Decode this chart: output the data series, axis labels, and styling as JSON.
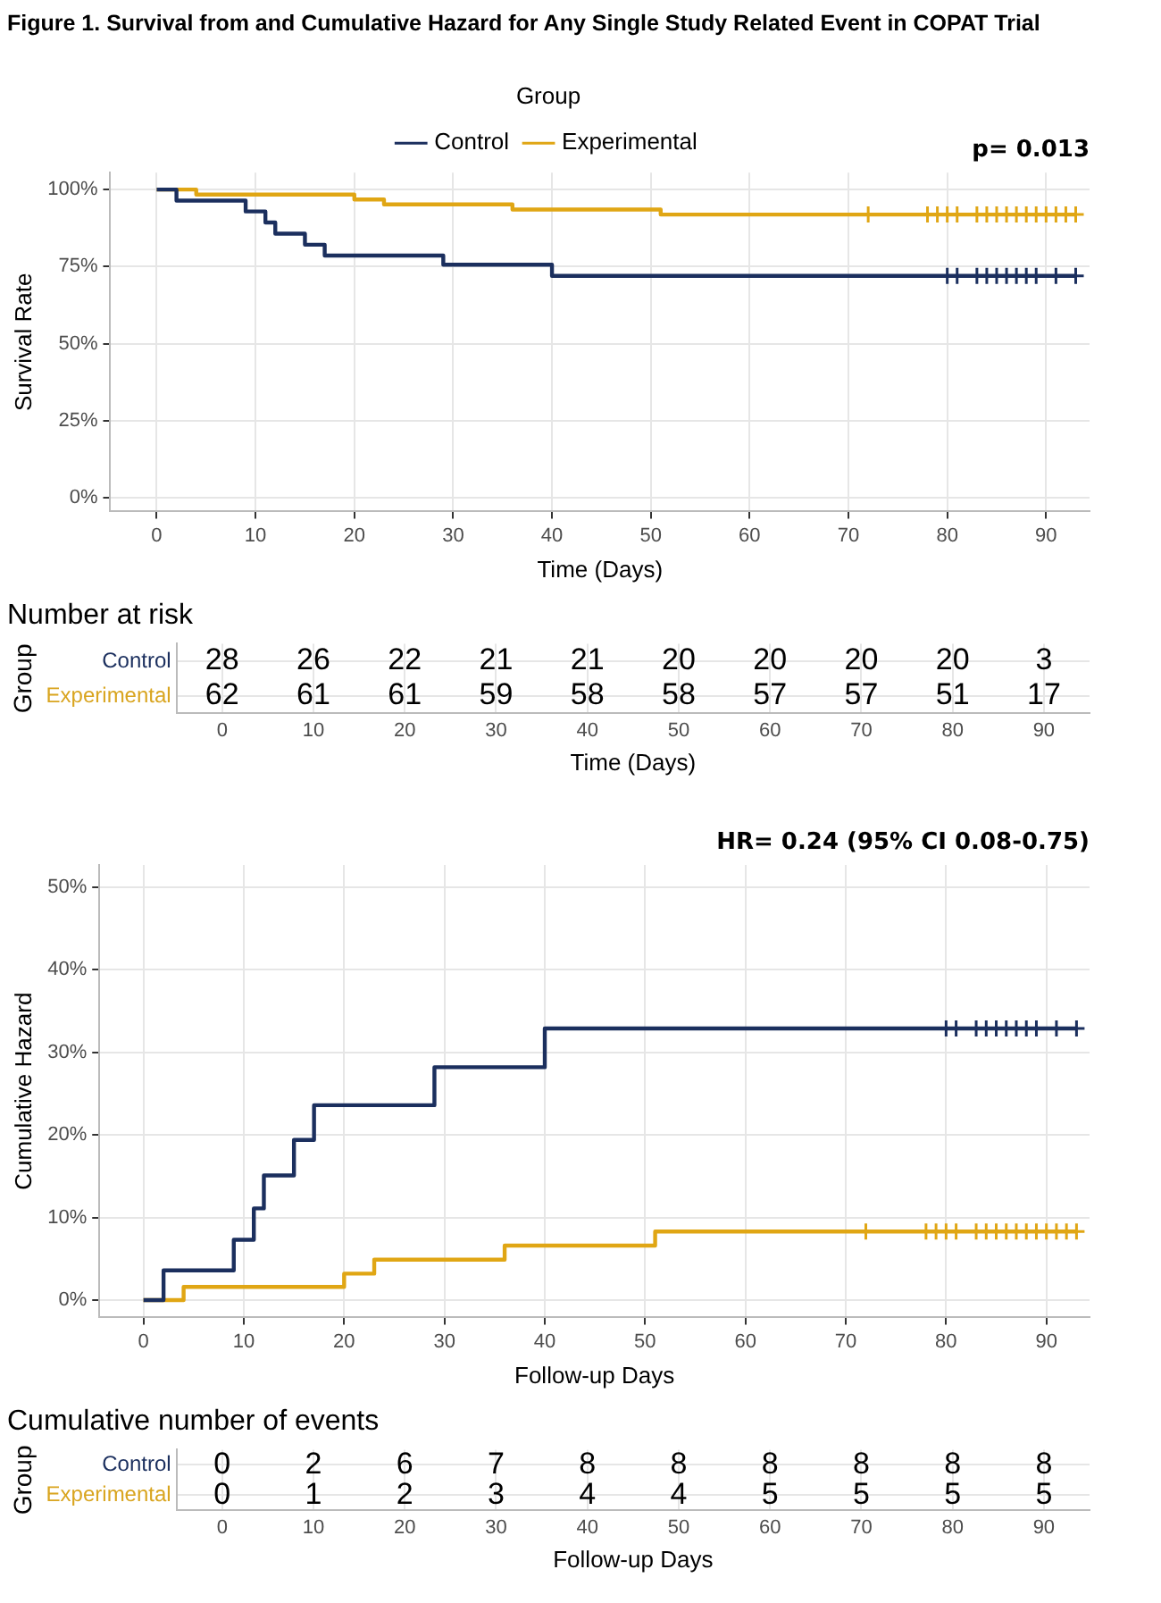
{
  "chart_data": [
    {
      "type": "step",
      "title": "Figure 1. Survival from and Cumulative Hazard for Any Single Study Related Event in COPAT Trial",
      "legend_title": "Group",
      "legend": "top",
      "xlabel": "Time (Days)",
      "ylabel": "Survival Rate",
      "annotations": [
        "p= 0.013"
      ],
      "grid": true,
      "xlim": [
        -4.7,
        94.4
      ],
      "xticks": [
        0,
        10,
        20,
        30,
        40,
        50,
        60,
        70,
        80,
        90
      ],
      "ylim": [
        -4.5,
        105.5
      ],
      "yticks": [
        {
          "value": 0,
          "label": "0%"
        },
        {
          "value": 25,
          "label": "25%"
        },
        {
          "value": 50,
          "label": "50%"
        },
        {
          "value": 75,
          "label": "75%"
        },
        {
          "value": 100,
          "label": "100%"
        }
      ],
      "series": [
        {
          "name": "Control",
          "color": "#1b2f5e",
          "x": [
            0,
            2,
            9,
            11,
            12,
            15,
            17,
            29,
            40,
            93
          ],
          "values": [
            100,
            96.4,
            92.9,
            89.3,
            85.7,
            82.1,
            78.6,
            75.6,
            72.0,
            72.0
          ]
        },
        {
          "name": "Experimental",
          "color": "#e0a614",
          "x": [
            0,
            4,
            20,
            23,
            36,
            51,
            93
          ],
          "values": [
            100,
            98.4,
            96.8,
            95.2,
            93.5,
            91.9,
            91.9
          ]
        },
        {
          "type": "scatter",
          "marker": "cross",
          "color": "#1b2f5e",
          "x": [
            80,
            81,
            83,
            84,
            85,
            86,
            87,
            88,
            89,
            91,
            93
          ],
          "values": [
            72.0,
            72.0,
            72.0,
            72.0,
            72.0,
            72.0,
            72.0,
            72.0,
            72.0,
            72.0,
            72.0
          ]
        },
        {
          "type": "scatter",
          "marker": "cross",
          "color": "#e0a614",
          "x": [
            72,
            78,
            79,
            80,
            81,
            83,
            84,
            85,
            86,
            87,
            88,
            89,
            90,
            91,
            92,
            93
          ],
          "values": [
            91.9,
            91.9,
            91.9,
            91.9,
            91.9,
            91.9,
            91.9,
            91.9,
            91.9,
            91.9,
            91.9,
            91.9,
            91.9,
            91.9,
            91.9,
            91.9
          ]
        }
      ]
    },
    {
      "type": "heatmap",
      "title": "Number at risk",
      "xlabel": "Time (Days)",
      "ylabel": "Group",
      "grid": true,
      "data_labels": true,
      "categories": [
        "0",
        "10",
        "20",
        "30",
        "40",
        "50",
        "60",
        "70",
        "80",
        "90"
      ],
      "y_categories": [
        "Control",
        "Experimental"
      ],
      "cells": [
        [
          28,
          26,
          22,
          21,
          21,
          20,
          20,
          20,
          20,
          3
        ],
        [
          62,
          61,
          61,
          59,
          58,
          58,
          57,
          57,
          51,
          17
        ]
      ]
    },
    {
      "type": "step",
      "xlabel": "Follow-up Days",
      "ylabel": "Cumulative Hazard",
      "annotations": [
        "HR= 0.24 (95% CI 0.08-0.75)"
      ],
      "grid": true,
      "xlim": [
        -4.4,
        94.3
      ],
      "xticks": [
        0,
        10,
        20,
        30,
        40,
        50,
        60,
        70,
        80,
        90
      ],
      "ylim": [
        -2.1,
        52.7
      ],
      "yticks": [
        {
          "value": 0,
          "label": "0%"
        },
        {
          "value": 10,
          "label": "10%"
        },
        {
          "value": 20,
          "label": "20%"
        },
        {
          "value": 30,
          "label": "30%"
        },
        {
          "value": 40,
          "label": "40%"
        },
        {
          "value": 50,
          "label": "50%"
        }
      ],
      "series": [
        {
          "color": "#1b2f5e",
          "x": [
            0,
            2,
            9,
            11,
            12,
            15,
            17,
            29,
            40,
            93
          ],
          "values": [
            0,
            3.6,
            7.3,
            11.1,
            15.1,
            19.4,
            23.6,
            28.2,
            32.9,
            32.9
          ]
        },
        {
          "color": "#e0a614",
          "x": [
            0,
            4,
            20,
            23,
            36,
            51,
            93
          ],
          "values": [
            0,
            1.6,
            3.2,
            4.9,
            6.6,
            8.3,
            8.3
          ]
        },
        {
          "type": "scatter",
          "marker": "cross",
          "color": "#1b2f5e",
          "x": [
            80,
            81,
            83,
            84,
            85,
            86,
            87,
            88,
            89,
            91,
            93
          ],
          "values": [
            32.9,
            32.9,
            32.9,
            32.9,
            32.9,
            32.9,
            32.9,
            32.9,
            32.9,
            32.9,
            32.9
          ]
        },
        {
          "type": "scatter",
          "marker": "cross",
          "color": "#e0a614",
          "x": [
            72,
            78,
            79,
            80,
            81,
            83,
            84,
            85,
            86,
            87,
            88,
            89,
            90,
            91,
            92,
            93
          ],
          "values": [
            8.3,
            8.3,
            8.3,
            8.3,
            8.3,
            8.3,
            8.3,
            8.3,
            8.3,
            8.3,
            8.3,
            8.3,
            8.3,
            8.3,
            8.3,
            8.3
          ]
        }
      ]
    },
    {
      "type": "heatmap",
      "title": "Cumulative number of events",
      "xlabel": "Follow-up Days",
      "ylabel": "Group",
      "grid": true,
      "data_labels": true,
      "categories": [
        "0",
        "10",
        "20",
        "30",
        "40",
        "50",
        "60",
        "70",
        "80",
        "90"
      ],
      "y_categories": [
        "Control",
        "Experimental"
      ],
      "cells": [
        [
          0,
          2,
          6,
          7,
          8,
          8,
          8,
          8,
          8,
          8
        ],
        [
          0,
          1,
          2,
          3,
          4,
          4,
          5,
          5,
          5,
          5
        ]
      ]
    }
  ]
}
